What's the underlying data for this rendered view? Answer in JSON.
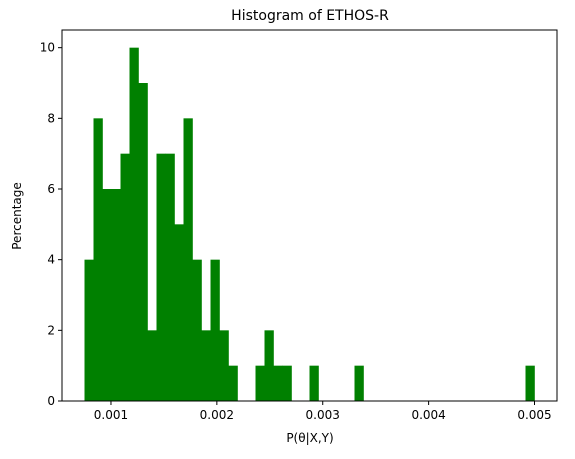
{
  "chart_data": {
    "type": "histogram",
    "title": "Histogram of ETHOS-R",
    "x_label": "P(θ|X,Y)",
    "y_label": "Percentage",
    "bins": [
      0.00075,
      0.000835,
      0.00092,
      0.001005,
      0.00109,
      0.001175,
      0.00126,
      0.001345,
      0.00143,
      0.001515,
      0.0016,
      0.001685,
      0.00177,
      0.001855,
      0.00194,
      0.002025,
      0.00211,
      0.002195,
      0.00228,
      0.002365,
      0.00245,
      0.002535,
      0.00262,
      0.002705,
      0.00279,
      0.002875,
      0.00296,
      0.003045,
      0.00313,
      0.003215,
      0.0033,
      0.003385,
      0.00347,
      0.003555,
      0.00364,
      0.003725,
      0.00381,
      0.003895,
      0.00398,
      0.004065,
      0.00415,
      0.004235,
      0.00432,
      0.004405,
      0.00449,
      0.004575,
      0.00466,
      0.004745,
      0.00483,
      0.004915,
      0.005
    ],
    "values": [
      4,
      8,
      6,
      6,
      7,
      10,
      9,
      2,
      7,
      7,
      5,
      8,
      4,
      2,
      4,
      2,
      1,
      0,
      0,
      1,
      2,
      1,
      1,
      0,
      0,
      1,
      0,
      0,
      0,
      0,
      1,
      0,
      0,
      0,
      0,
      0,
      0,
      0,
      0,
      0,
      0,
      0,
      0,
      0,
      0,
      0,
      0,
      0,
      0,
      1
    ],
    "color": "#008000",
    "xlim": [
      0.0005375,
      0.0052125
    ],
    "xticks": [
      0.001,
      0.002,
      0.003,
      0.004,
      0.005
    ],
    "ylim": [
      0,
      10.5
    ],
    "yticks": [
      0,
      2,
      4,
      6,
      8,
      10
    ]
  }
}
